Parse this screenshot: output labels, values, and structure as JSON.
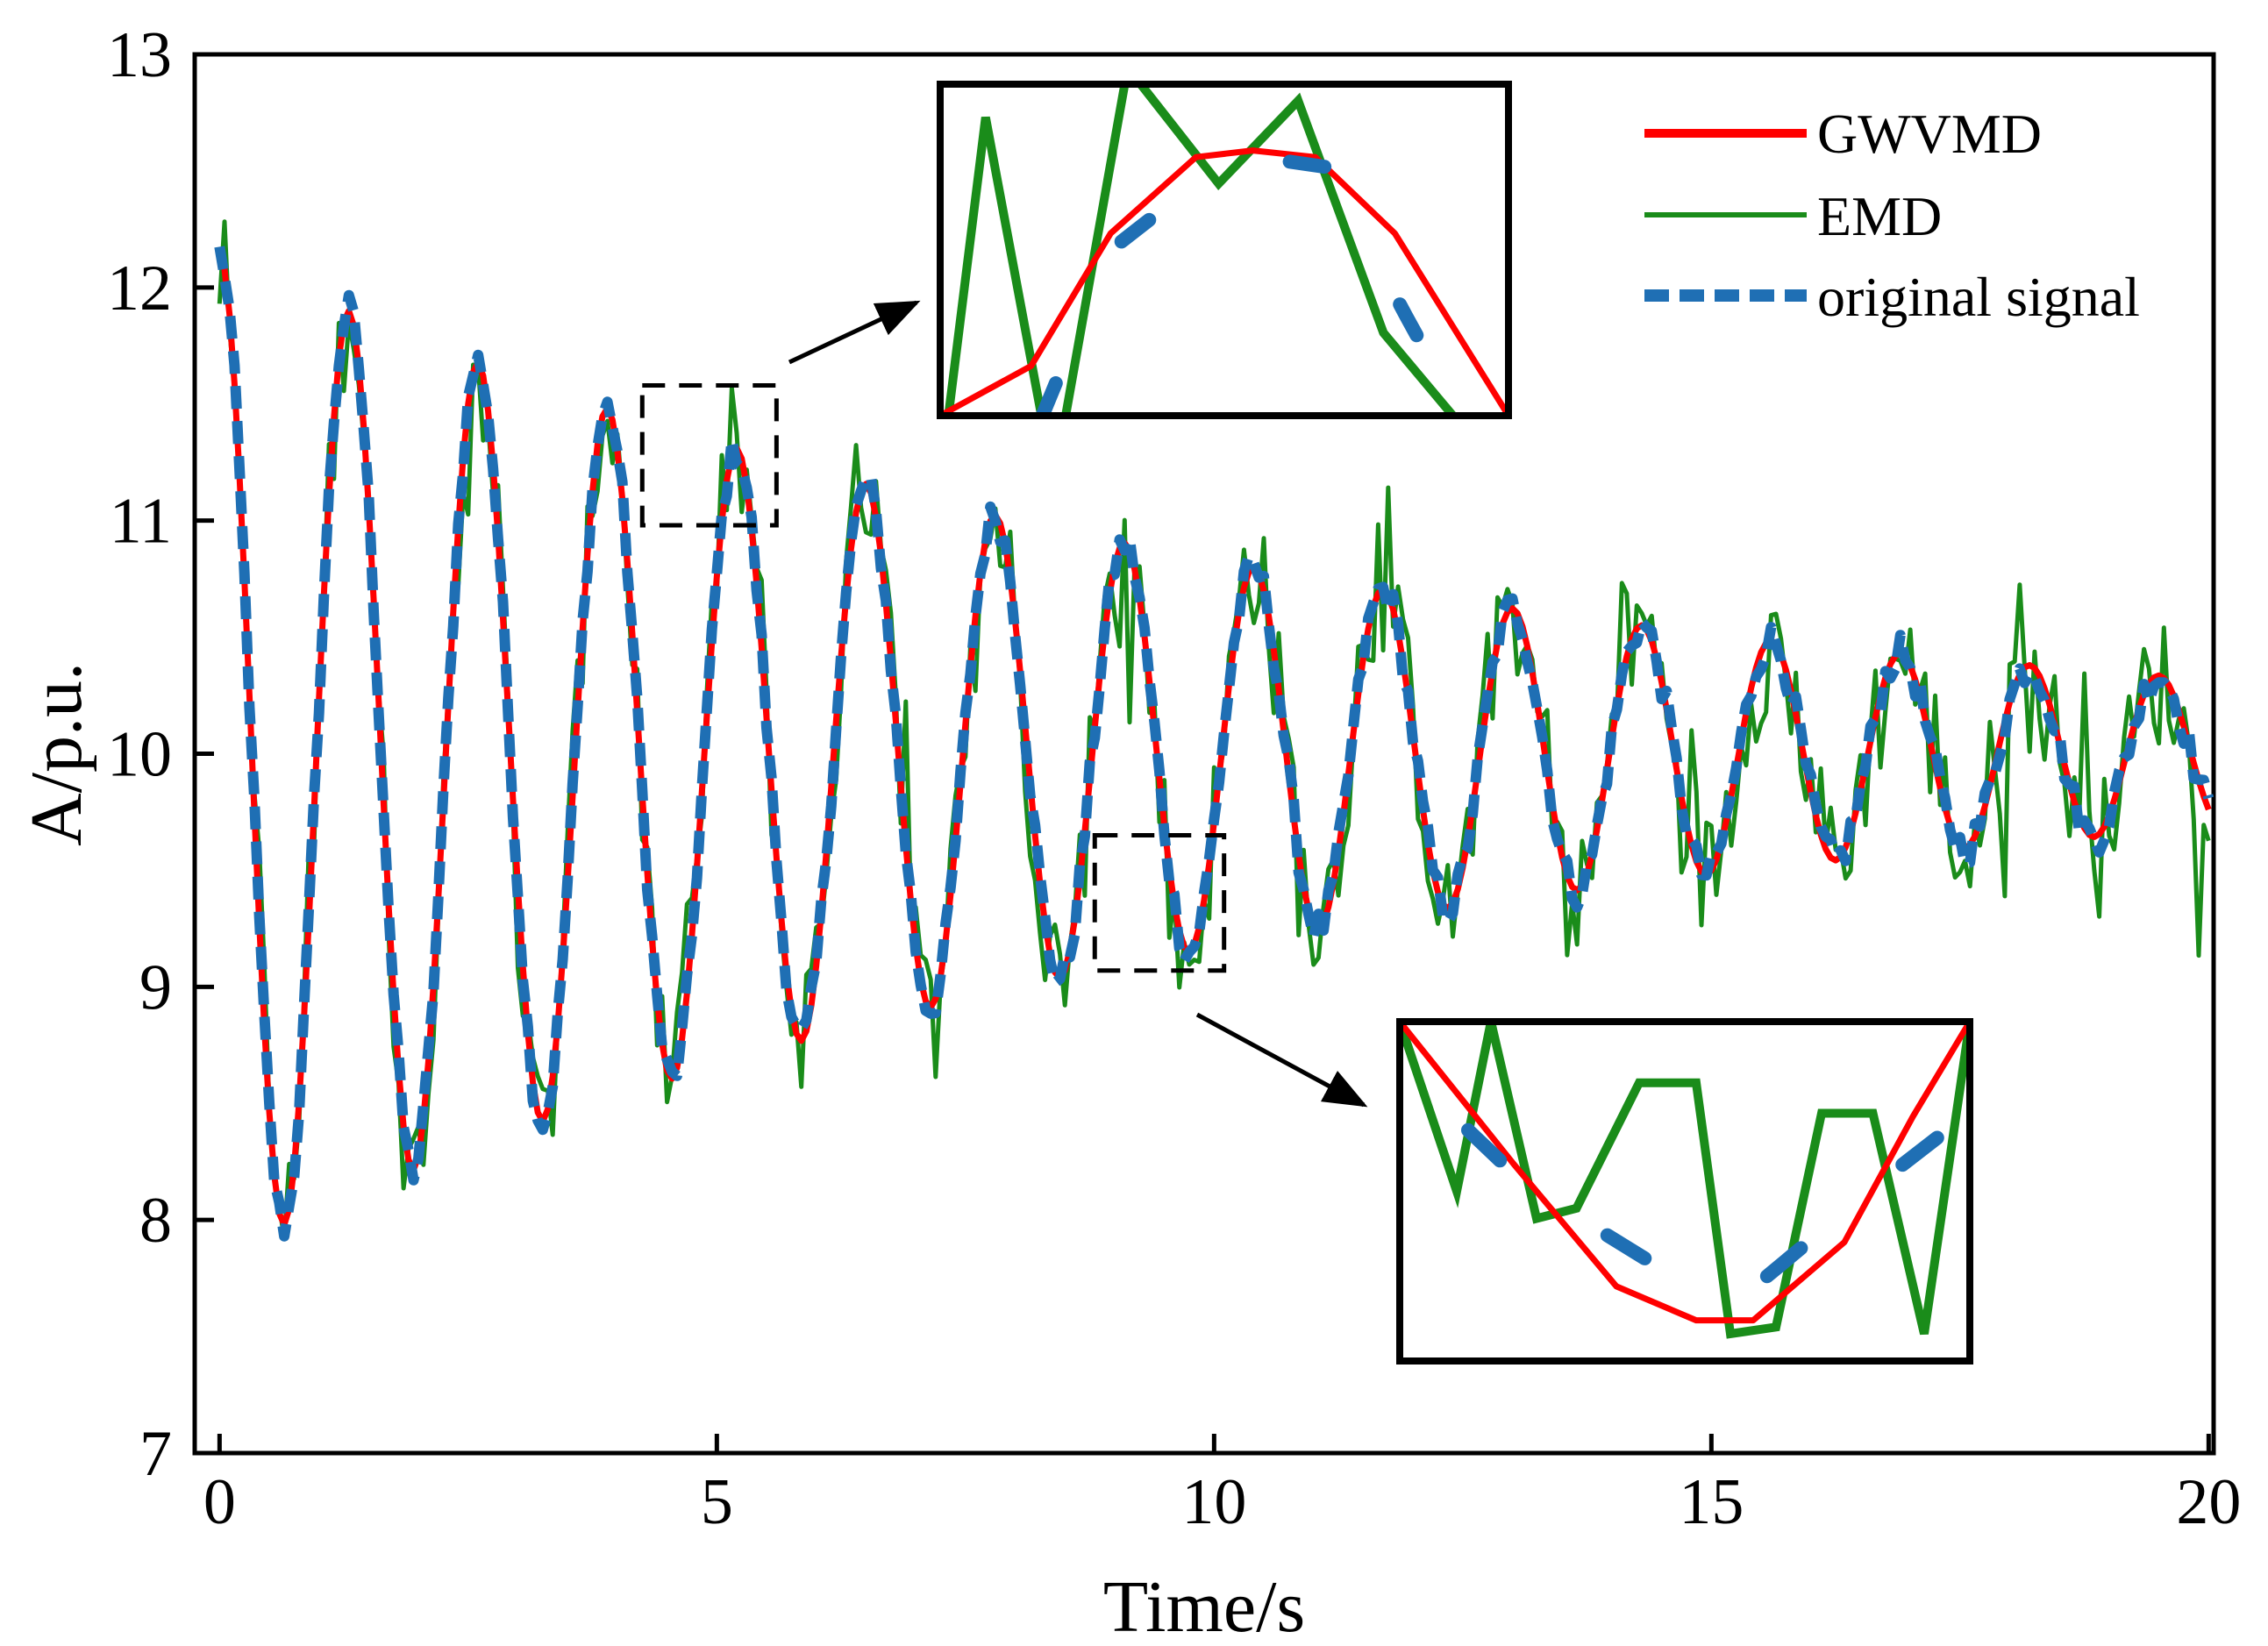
{
  "chart_data": {
    "type": "line",
    "title": "",
    "xlabel": "Time/s",
    "ylabel": "A/p.u.",
    "xlim": [
      -0.25,
      20.05
    ],
    "ylim": [
      7,
      13
    ],
    "x_ticks": [
      0,
      5,
      10,
      15,
      20
    ],
    "x_tick_labels": [
      "0",
      "5",
      "10",
      "15",
      "20"
    ],
    "y_ticks": [
      7,
      8,
      9,
      10,
      11,
      12,
      13
    ],
    "y_tick_labels": [
      "7",
      "8",
      "9",
      "10",
      "11",
      "12",
      "13"
    ],
    "grid": false,
    "legend_position": "top-right",
    "colors": {
      "gwvmd": "#ff0000",
      "emd": "#1a8c1a",
      "original": "#1f6fb4",
      "axis": "#000000",
      "inset_box": "#000000",
      "zoom_box": "#000000"
    },
    "series": [
      {
        "name": "GWVMD",
        "style": "solid-thick",
        "signal_model": {
          "offset": 10.0,
          "amplitude_start": 2.15,
          "amplitude_end": 0.32,
          "period": 1.3,
          "start_time": 0.0,
          "end_time": 20.0,
          "sample_step": 0.05
        }
      },
      {
        "name": "EMD",
        "style": "solid-thin",
        "signal_model": {
          "based_on": "original signal",
          "noise_amplitude": 0.28,
          "start_time": 0.0,
          "end_time": 20.0,
          "sample_step": 0.05
        }
      },
      {
        "name": "original signal",
        "style": "dashed-thick",
        "signal_model": {
          "based_on": "GWVMD",
          "deviation": 0.08,
          "start_time": 0.0,
          "end_time": 20.0,
          "sample_step": 0.05
        }
      }
    ],
    "annotations": [
      {
        "type": "zoom",
        "region": {
          "x": [
            4.25,
            5.6
          ],
          "y": [
            10.98,
            11.58
          ]
        },
        "inset_position": "upper-middle",
        "inset_detail": {
          "gwvmd": [
            [
              0.0,
              0.0
            ],
            [
              0.16,
              0.15
            ],
            [
              0.3,
              0.55
            ],
            [
              0.45,
              0.78
            ],
            [
              0.55,
              0.8
            ],
            [
              0.66,
              0.78
            ],
            [
              0.8,
              0.55
            ],
            [
              1.0,
              0.0
            ]
          ],
          "emd": [
            [
              0.0,
              -0.2
            ],
            [
              0.08,
              0.9
            ],
            [
              0.2,
              -0.2
            ],
            [
              0.33,
              1.05
            ],
            [
              0.49,
              0.7
            ],
            [
              0.63,
              0.95
            ],
            [
              0.78,
              0.25
            ],
            [
              1.0,
              -0.2
            ]
          ],
          "original": [
            [
              0.18,
              0.0
            ],
            [
              0.3,
              0.5
            ],
            [
              0.39,
              0.62
            ],
            [
              0.56,
              0.78
            ],
            [
              0.68,
              0.75
            ],
            [
              0.82,
              0.3
            ],
            [
              0.9,
              0.05
            ]
          ]
        }
      },
      {
        "type": "zoom",
        "region": {
          "x": [
            8.8,
            10.1
          ],
          "y": [
            9.07,
            9.65
          ]
        },
        "inset_position": "lower-right",
        "inset_detail": {
          "gwvmd": [
            [
              0.0,
              1.0
            ],
            [
              0.2,
              0.58
            ],
            [
              0.38,
              0.22
            ],
            [
              0.52,
              0.12
            ],
            [
              0.62,
              0.12
            ],
            [
              0.78,
              0.35
            ],
            [
              0.9,
              0.72
            ],
            [
              1.0,
              1.0
            ]
          ],
          "emd": [
            [
              0.0,
              1.0
            ],
            [
              0.1,
              0.5
            ],
            [
              0.16,
              1.0
            ],
            [
              0.24,
              0.42
            ],
            [
              0.31,
              0.45
            ],
            [
              0.42,
              0.82
            ],
            [
              0.52,
              0.82
            ],
            [
              0.58,
              0.08
            ],
            [
              0.66,
              0.1
            ],
            [
              0.74,
              0.73
            ],
            [
              0.83,
              0.73
            ],
            [
              0.92,
              0.08
            ],
            [
              1.0,
              1.0
            ]
          ],
          "original": [
            [
              0.12,
              0.68
            ],
            [
              0.22,
              0.52
            ],
            [
              0.49,
              0.24
            ],
            [
              0.57,
              0.22
            ],
            [
              0.63,
              0.23
            ],
            [
              0.86,
              0.55
            ],
            [
              0.96,
              0.68
            ]
          ]
        }
      }
    ]
  }
}
